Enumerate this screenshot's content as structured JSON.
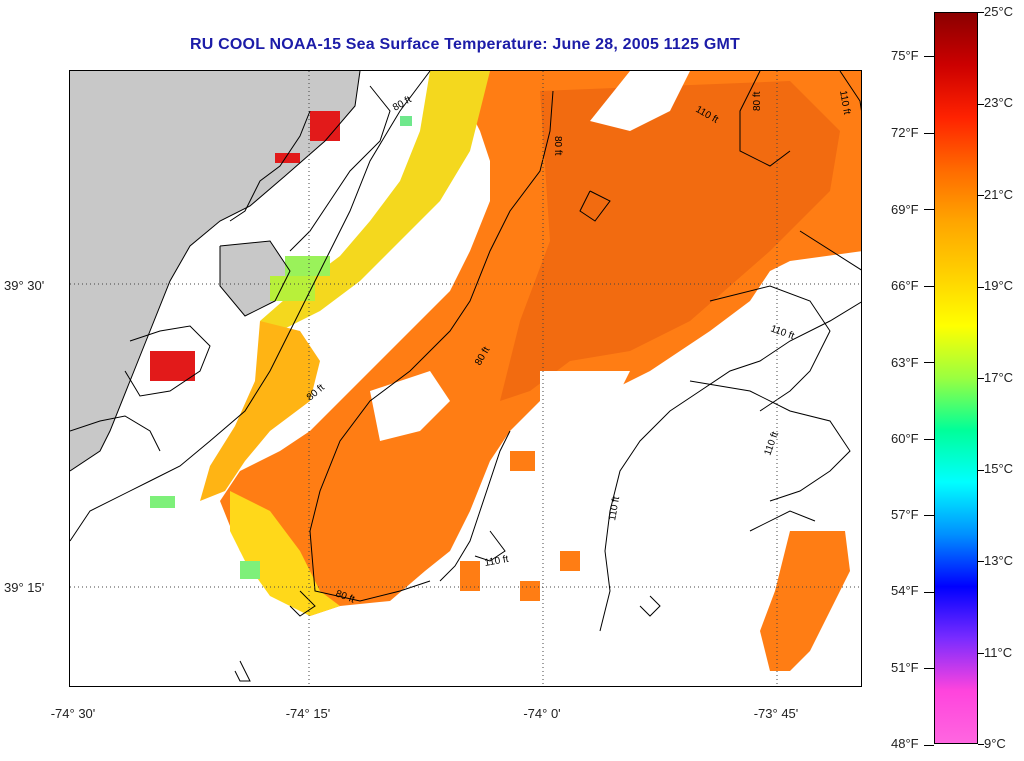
{
  "title": "RU COOL  NOAA-15  Sea Surface Temperature:  June 28, 2005 1125 GMT",
  "lat_labels": [
    {
      "text": "39° 30'"
    },
    {
      "text": "39° 15'"
    }
  ],
  "lon_labels": [
    {
      "text": "-74° 30'"
    },
    {
      "text": "-74° 15'"
    },
    {
      "text": "-74° 0'"
    },
    {
      "text": "-73° 45'"
    }
  ],
  "colorbar": {
    "fahrenheit": [
      "75°F",
      "72°F",
      "69°F",
      "66°F",
      "63°F",
      "60°F",
      "57°F",
      "54°F",
      "51°F",
      "48°F"
    ],
    "celsius": [
      "25°C",
      "23°C",
      "21°C",
      "19°C",
      "17°C",
      "15°C",
      "13°C",
      "11°C",
      "9°C"
    ],
    "colors": [
      "#8b0000",
      "#cc0000",
      "#ff2200",
      "#ff6a00",
      "#ffa500",
      "#ffd000",
      "#ffff00",
      "#9aff40",
      "#00ff99",
      "#00ffff",
      "#0090ff",
      "#0000ff",
      "#7a2cff",
      "#ff44dd",
      "#ff66e0"
    ]
  },
  "contour_labels": [
    "80 ft",
    "110 ft",
    "80 ft",
    "110 ft",
    "80 ft",
    "80 ft",
    "110 ft",
    "110 ft",
    "110 ft",
    "80 ft",
    "110 ft",
    "80 ft"
  ],
  "colors": {
    "land": "#c8c8c8",
    "coast": "#000000",
    "title": "#1c1ca8",
    "warm": "#ff7d14",
    "cool": "#f0e020",
    "hot": "#e21a1a"
  }
}
